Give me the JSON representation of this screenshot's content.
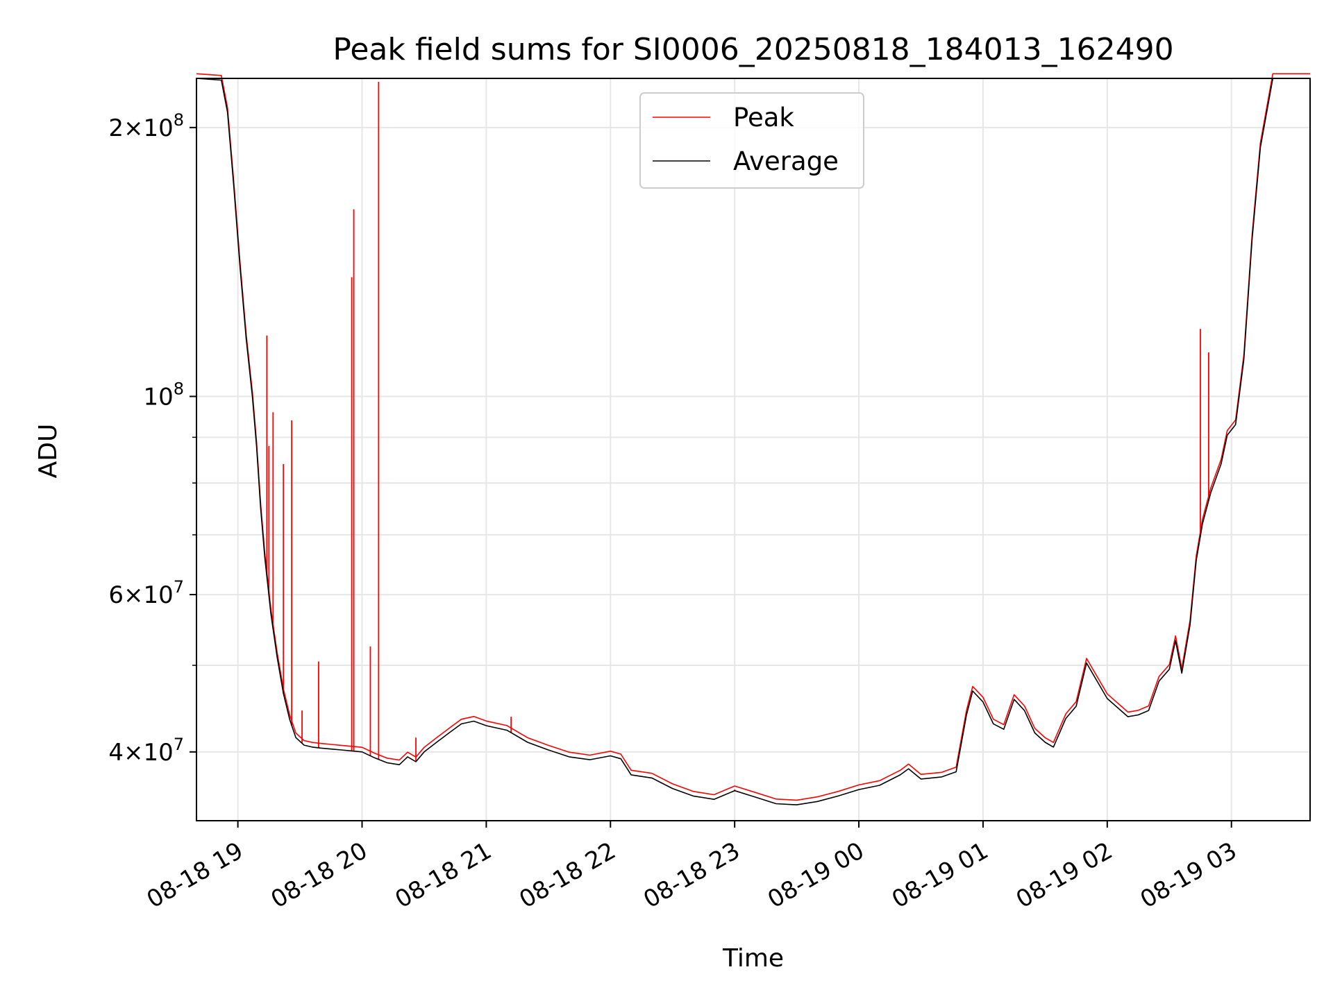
{
  "colors": {
    "peak": "#ff0000",
    "average": "#000000",
    "grid": "#e6e6e6",
    "axes": "#000000"
  },
  "chart_data": {
    "type": "line",
    "title": "Peak field sums for SI0006_20250818_184013_162490",
    "xlabel": "Time",
    "ylabel": "ADU",
    "yscale": "log",
    "xlim": [
      "2025-08-18 18:40",
      "2025-08-19 03:38"
    ],
    "ylim": [
      33500000,
      227000000
    ],
    "grid": true,
    "legend_position": "upper center",
    "x_tick_labels": [
      "08-18 19",
      "08-18 20",
      "08-18 21",
      "08-18 22",
      "08-18 23",
      "08-19 00",
      "08-19 01",
      "08-19 02",
      "08-19 03"
    ],
    "x_ticks": [
      "2025-08-18 19:00",
      "2025-08-18 20:00",
      "2025-08-18 21:00",
      "2025-08-18 22:00",
      "2025-08-18 23:00",
      "2025-08-19 00:00",
      "2025-08-19 01:00",
      "2025-08-19 02:00",
      "2025-08-19 03:00"
    ],
    "y_ticks": [
      {
        "value": 40000000,
        "mant": "4",
        "exp": "7"
      },
      {
        "value": 60000000,
        "mant": "6",
        "exp": "7"
      },
      {
        "value": 100000000,
        "mant": "",
        "exp": "8"
      },
      {
        "value": 200000000,
        "mant": "2",
        "exp": "8"
      }
    ],
    "y_minor_ticks": [
      50000000,
      70000000,
      80000000,
      90000000
    ],
    "series": [
      {
        "name": "Average",
        "x": [
          "2025-08-18 18:40",
          "2025-08-18 18:52",
          "2025-08-18 18:55",
          "2025-08-18 18:58",
          "2025-08-18 19:01",
          "2025-08-18 19:04",
          "2025-08-18 19:07",
          "2025-08-18 19:09",
          "2025-08-18 19:11",
          "2025-08-18 19:13",
          "2025-08-18 19:16",
          "2025-08-18 19:19",
          "2025-08-18 19:22",
          "2025-08-18 19:25",
          "2025-08-18 19:28",
          "2025-08-18 19:32",
          "2025-08-18 19:36",
          "2025-08-18 19:40",
          "2025-08-18 19:45",
          "2025-08-18 19:50",
          "2025-08-18 19:55",
          "2025-08-18 20:00",
          "2025-08-18 20:06",
          "2025-08-18 20:12",
          "2025-08-18 20:18",
          "2025-08-18 20:22",
          "2025-08-18 20:26",
          "2025-08-18 20:30",
          "2025-08-18 20:36",
          "2025-08-18 20:42",
          "2025-08-18 20:48",
          "2025-08-18 20:54",
          "2025-08-18 21:00",
          "2025-08-18 21:10",
          "2025-08-18 21:20",
          "2025-08-18 21:30",
          "2025-08-18 21:40",
          "2025-08-18 21:50",
          "2025-08-18 22:00",
          "2025-08-18 22:05",
          "2025-08-18 22:10",
          "2025-08-18 22:20",
          "2025-08-18 22:30",
          "2025-08-18 22:40",
          "2025-08-18 22:50",
          "2025-08-18 23:00",
          "2025-08-18 23:10",
          "2025-08-18 23:20",
          "2025-08-18 23:30",
          "2025-08-18 23:40",
          "2025-08-18 23:50",
          "2025-08-19 00:00",
          "2025-08-19 00:10",
          "2025-08-19 00:20",
          "2025-08-19 00:24",
          "2025-08-19 00:30",
          "2025-08-19 00:40",
          "2025-08-19 00:47",
          "2025-08-19 00:52",
          "2025-08-19 00:55",
          "2025-08-19 01:00",
          "2025-08-19 01:05",
          "2025-08-19 01:10",
          "2025-08-19 01:15",
          "2025-08-19 01:20",
          "2025-08-19 01:25",
          "2025-08-19 01:30",
          "2025-08-19 01:34",
          "2025-08-19 01:40",
          "2025-08-19 01:45",
          "2025-08-19 01:50",
          "2025-08-19 02:00",
          "2025-08-19 02:10",
          "2025-08-19 02:15",
          "2025-08-19 02:20",
          "2025-08-19 02:25",
          "2025-08-19 02:30",
          "2025-08-19 02:33",
          "2025-08-19 02:36",
          "2025-08-19 02:40",
          "2025-08-19 02:43",
          "2025-08-19 02:46",
          "2025-08-19 02:50",
          "2025-08-19 02:55",
          "2025-08-19 02:58",
          "2025-08-19 03:02",
          "2025-08-19 03:06",
          "2025-08-19 03:10",
          "2025-08-19 03:14",
          "2025-08-19 03:20",
          "2025-08-19 03:38"
        ],
        "y": [
          227000000,
          226000000,
          208000000,
          172000000,
          140000000,
          116000000,
          100000000,
          88000000,
          75000000,
          66000000,
          57000000,
          51000000,
          46500000,
          43500000,
          41500000,
          40700000,
          40500000,
          40400000,
          40300000,
          40200000,
          40100000,
          40000000,
          39400000,
          38900000,
          38700000,
          39500000,
          39000000,
          40000000,
          41000000,
          42000000,
          43000000,
          43300000,
          42800000,
          42300000,
          41000000,
          40200000,
          39500000,
          39200000,
          39600000,
          39300000,
          37700000,
          37400000,
          36400000,
          35700000,
          35400000,
          36200000,
          35600000,
          35000000,
          34900000,
          35200000,
          35700000,
          36300000,
          36700000,
          37700000,
          38300000,
          37300000,
          37500000,
          38000000,
          44000000,
          46800000,
          45500000,
          43000000,
          42400000,
          45800000,
          44500000,
          42000000,
          41000000,
          40500000,
          43600000,
          45000000,
          50300000,
          45900000,
          43800000,
          44000000,
          44500000,
          48000000,
          49500000,
          53300000,
          49000000,
          55500000,
          65500000,
          72000000,
          78000000,
          84000000,
          90500000,
          93000000,
          110000000,
          150000000,
          190000000,
          227000000,
          227000000
        ]
      },
      {
        "name": "Peak",
        "spikes": [
          {
            "x": "2025-08-18 19:14",
            "y": 117000000
          },
          {
            "x": "2025-08-18 19:15",
            "y": 88000000
          },
          {
            "x": "2025-08-18 19:17",
            "y": 96000000
          },
          {
            "x": "2025-08-18 19:22",
            "y": 84000000
          },
          {
            "x": "2025-08-18 19:26",
            "y": 94000000
          },
          {
            "x": "2025-08-18 19:31",
            "y": 44500000
          },
          {
            "x": "2025-08-18 19:39",
            "y": 50500000
          },
          {
            "x": "2025-08-18 19:55",
            "y": 136000000
          },
          {
            "x": "2025-08-18 19:56",
            "y": 162000000
          },
          {
            "x": "2025-08-18 20:04",
            "y": 52500000
          },
          {
            "x": "2025-08-18 20:08",
            "y": 225000000
          },
          {
            "x": "2025-08-18 20:26",
            "y": 41500000
          },
          {
            "x": "2025-08-18 21:12",
            "y": 43800000
          },
          {
            "x": "2025-08-18 23:00",
            "y": 36300000
          },
          {
            "x": "2025-08-19 02:45",
            "y": 119000000
          },
          {
            "x": "2025-08-19 02:49",
            "y": 112000000
          }
        ]
      }
    ]
  }
}
